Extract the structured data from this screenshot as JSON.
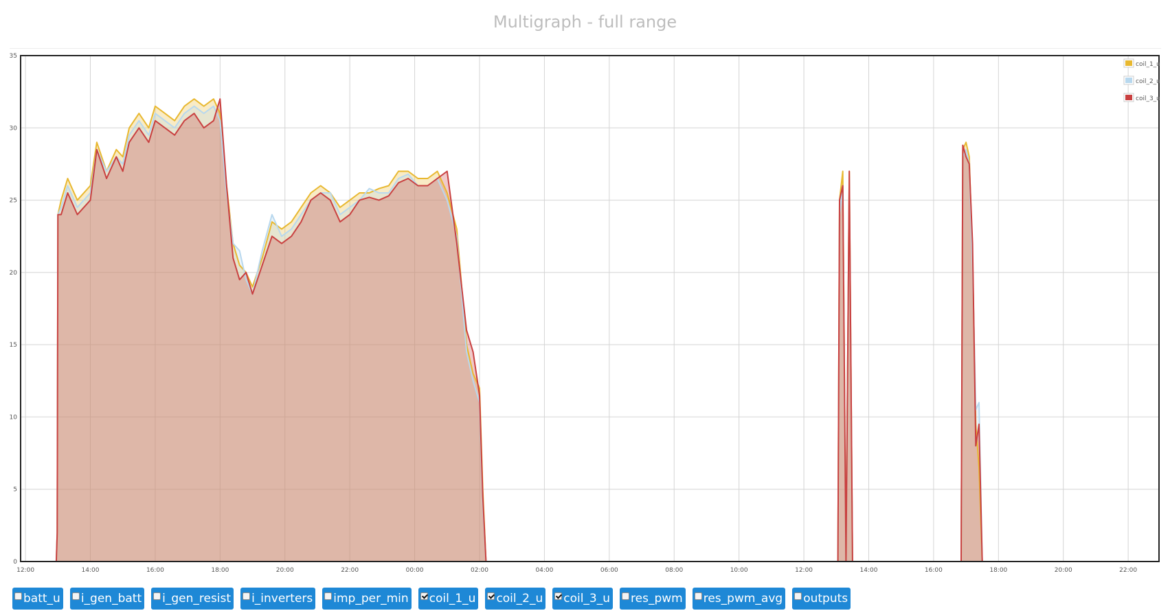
{
  "title": "Multigraph - full range",
  "chart_data": {
    "type": "area",
    "xlabel": "",
    "ylabel": "",
    "x_start": "12:00",
    "x_ticks": [
      "12:00",
      "14:00",
      "16:00",
      "18:00",
      "20:00",
      "22:00",
      "00:00",
      "02:00",
      "04:00",
      "06:00",
      "08:00",
      "10:00",
      "12:00",
      "14:00",
      "16:00",
      "18:00",
      "20:00",
      "22:00"
    ],
    "y_ticks": [
      0,
      5,
      10,
      15,
      20,
      25,
      30,
      35
    ],
    "ylim": [
      0,
      35
    ],
    "x_unit": "hours",
    "xlim": [
      11.85,
      46.95
    ],
    "grid": true,
    "legend_position": "top-right",
    "series": [
      {
        "name": "coil_1_u",
        "color": "#e8b830",
        "x": [
          11.85,
          12.95,
          12.98,
          13.0,
          13.1,
          13.3,
          13.6,
          14.0,
          14.2,
          14.5,
          14.8,
          15.0,
          15.2,
          15.5,
          15.8,
          16.0,
          16.3,
          16.6,
          16.9,
          17.2,
          17.5,
          17.8,
          18.0,
          18.2,
          18.4,
          18.6,
          18.8,
          19.0,
          19.3,
          19.6,
          19.9,
          20.2,
          20.5,
          20.8,
          21.1,
          21.4,
          21.7,
          22.0,
          22.3,
          22.6,
          22.9,
          23.2,
          23.5,
          23.8,
          24.1,
          24.4,
          24.7,
          25.0,
          25.3,
          25.6,
          25.8,
          26.0,
          26.1,
          26.2,
          26.3,
          26.4,
          26.45,
          26.5,
          26.7,
          37.05,
          37.1,
          37.2,
          37.3,
          37.4,
          37.5,
          37.55,
          40.82,
          40.85,
          40.9,
          41.0,
          41.1,
          41.2,
          41.3,
          41.4,
          41.5,
          41.55,
          46.95
        ],
        "values": [
          0,
          0,
          2,
          24,
          25,
          26.5,
          25,
          26,
          29,
          27,
          28.5,
          28,
          30,
          31,
          30,
          31.5,
          31,
          30.5,
          31.5,
          32,
          31.5,
          32,
          31,
          26,
          22,
          20.5,
          20,
          19,
          21,
          23.5,
          23,
          23.5,
          24.5,
          25.5,
          26,
          25.5,
          24.5,
          25,
          25.5,
          25.5,
          25.8,
          26,
          27,
          27,
          26.5,
          26.5,
          27,
          25.5,
          23,
          15,
          13,
          12,
          5,
          0,
          0,
          0,
          0,
          0,
          0,
          0,
          25,
          27,
          0,
          27,
          0,
          0,
          0,
          0,
          28.5,
          29,
          28,
          21,
          9.5,
          6.5,
          0,
          0,
          0
        ]
      },
      {
        "name": "coil_2_u",
        "color": "#b8d8ee",
        "x": [
          11.85,
          12.95,
          12.98,
          13.0,
          13.1,
          13.3,
          13.6,
          14.0,
          14.2,
          14.5,
          14.8,
          15.0,
          15.2,
          15.5,
          15.8,
          16.0,
          16.3,
          16.6,
          16.9,
          17.2,
          17.5,
          17.8,
          18.0,
          18.2,
          18.4,
          18.6,
          18.8,
          19.0,
          19.3,
          19.6,
          19.9,
          20.2,
          20.5,
          20.8,
          21.1,
          21.4,
          21.7,
          22.0,
          22.3,
          22.6,
          22.9,
          23.2,
          23.5,
          23.8,
          24.1,
          24.4,
          24.7,
          25.0,
          25.3,
          25.6,
          25.8,
          26.0,
          26.1,
          26.2,
          26.3,
          26.4,
          26.45,
          26.5,
          26.7,
          37.05,
          37.1,
          37.2,
          37.3,
          37.4,
          37.5,
          37.55,
          40.82,
          40.85,
          40.9,
          41.0,
          41.1,
          41.2,
          41.3,
          41.4,
          41.5,
          41.55,
          46.95
        ],
        "values": [
          0,
          0,
          2,
          24,
          24.5,
          26,
          24.5,
          25.5,
          28.5,
          27,
          28,
          27.5,
          29.5,
          30.5,
          29.5,
          31,
          30.5,
          30,
          31,
          31.5,
          31,
          31.5,
          30.5,
          25.5,
          22,
          21.5,
          19.5,
          18.5,
          21.5,
          24,
          22.5,
          23,
          24,
          25,
          25.5,
          25.5,
          24,
          24.5,
          25,
          25.8,
          25.5,
          25.5,
          26.5,
          26.8,
          26,
          26,
          26.5,
          25,
          22.5,
          14.5,
          12.5,
          11,
          4,
          0,
          0,
          0,
          0,
          0,
          0,
          0,
          24,
          26,
          0,
          26.5,
          0,
          0,
          0,
          0,
          28,
          28.5,
          27.5,
          20.5,
          10.5,
          11,
          0,
          0,
          0
        ]
      },
      {
        "name": "coil_3_u",
        "color": "#c94040",
        "x": [
          11.85,
          12.95,
          12.98,
          13.0,
          13.1,
          13.3,
          13.6,
          14.0,
          14.2,
          14.5,
          14.8,
          15.0,
          15.2,
          15.5,
          15.8,
          16.0,
          16.3,
          16.6,
          16.9,
          17.2,
          17.5,
          17.8,
          18.0,
          18.2,
          18.4,
          18.6,
          18.8,
          19.0,
          19.3,
          19.6,
          19.9,
          20.2,
          20.5,
          20.8,
          21.1,
          21.4,
          21.7,
          22.0,
          22.3,
          22.6,
          22.9,
          23.2,
          23.5,
          23.8,
          24.1,
          24.4,
          24.7,
          25.0,
          25.3,
          25.6,
          25.8,
          26.0,
          26.1,
          26.2,
          26.3,
          26.4,
          26.45,
          26.5,
          26.7,
          37.05,
          37.1,
          37.2,
          37.3,
          37.4,
          37.5,
          37.55,
          40.82,
          40.85,
          40.9,
          41.0,
          41.1,
          41.2,
          41.3,
          41.4,
          41.5,
          41.55,
          46.95
        ],
        "values": [
          0,
          0,
          2,
          24,
          24,
          25.5,
          24,
          25,
          28.5,
          26.5,
          28,
          27,
          29,
          30,
          29,
          30.5,
          30,
          29.5,
          30.5,
          31,
          30,
          30.5,
          32,
          26,
          21,
          19.5,
          20,
          18.5,
          20.5,
          22.5,
          22,
          22.5,
          23.5,
          25,
          25.5,
          25,
          23.5,
          24,
          25,
          25.2,
          25,
          25.3,
          26.2,
          26.5,
          26,
          26,
          26.5,
          27,
          22,
          16,
          14.5,
          11.5,
          4.5,
          0,
          0,
          0,
          0,
          0,
          0,
          0,
          25,
          26,
          0,
          27,
          0,
          0,
          0,
          0,
          28.8,
          28,
          27.5,
          22,
          8,
          9.5,
          0,
          0,
          0
        ]
      }
    ]
  },
  "toolbar": {
    "items": [
      {
        "label": "batt_u",
        "checked": false
      },
      {
        "label": "i_gen_batt",
        "checked": false
      },
      {
        "label": "i_gen_resist",
        "checked": false
      },
      {
        "label": "i_inverters",
        "checked": false
      },
      {
        "label": "imp_per_min",
        "checked": false
      },
      {
        "label": "coil_1_u",
        "checked": true
      },
      {
        "label": "coil_2_u",
        "checked": true
      },
      {
        "label": "coil_3_u",
        "checked": true
      },
      {
        "label": "res_pwm",
        "checked": false
      },
      {
        "label": "res_pwm_avg",
        "checked": false
      },
      {
        "label": "outputs",
        "checked": false
      }
    ]
  }
}
